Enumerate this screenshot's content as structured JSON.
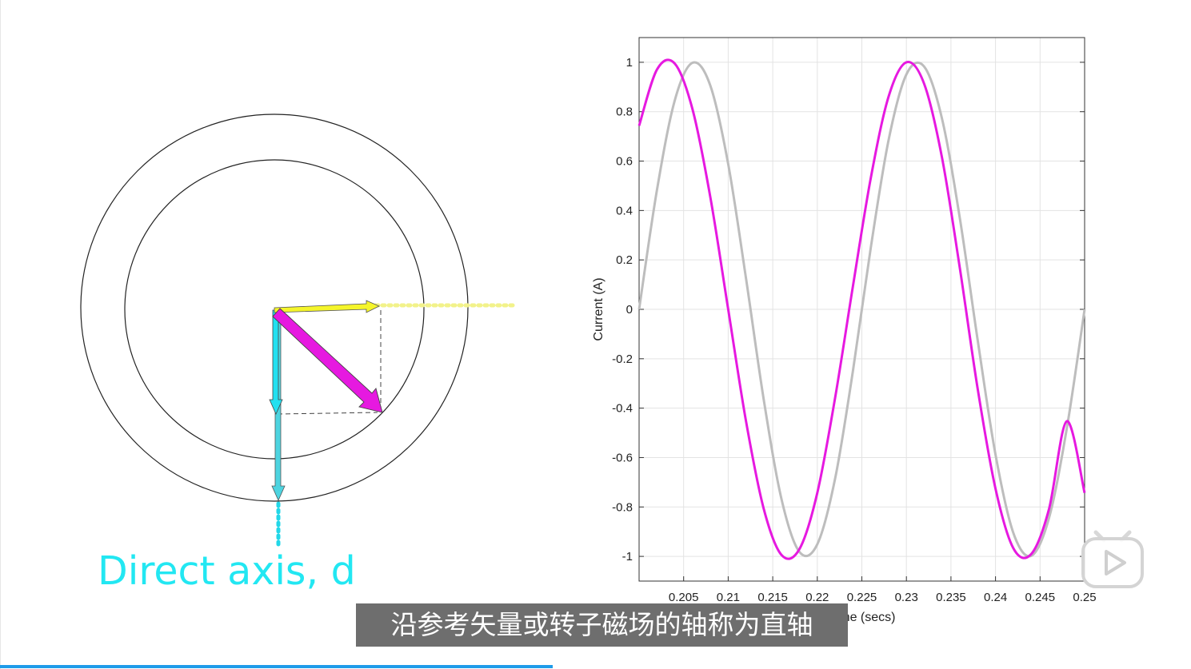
{
  "diagram": {
    "direct_axis_label": "Direct axis, d"
  },
  "chart_data": {
    "type": "line",
    "xlabel": "Time (secs)",
    "ylabel": "Current (A)",
    "xlim": [
      0.2,
      0.25
    ],
    "ylim": [
      -1.1,
      1.1
    ],
    "x_ticks": [
      "0.205",
      "0.21",
      "0.215",
      "0.22",
      "0.225",
      "0.23",
      "0.235",
      "0.24",
      "0.245",
      "0.25"
    ],
    "y_ticks": [
      "1",
      "0.8",
      "0.6",
      "0.4",
      "0.2",
      "0",
      "-0.2",
      "-0.4",
      "-0.6",
      "-0.8",
      "-1"
    ],
    "grid": true,
    "series": [
      {
        "color": "#bdbdbd",
        "x": [
          0.2,
          0.202,
          0.204,
          0.206,
          0.208,
          0.21,
          0.212,
          0.214,
          0.216,
          0.218,
          0.22,
          0.222,
          0.224,
          0.226,
          0.228,
          0.23,
          0.232,
          0.234,
          0.236,
          0.238,
          0.24,
          0.242,
          0.244,
          0.246,
          0.248,
          0.25
        ],
        "y": [
          0.0,
          0.482,
          0.845,
          0.998,
          0.905,
          0.588,
          0.125,
          -0.368,
          -0.771,
          -0.982,
          -0.951,
          -0.685,
          -0.249,
          0.249,
          0.685,
          0.951,
          0.982,
          0.771,
          0.368,
          -0.125,
          -0.588,
          -0.905,
          -0.998,
          -0.845,
          -0.482,
          0.0
        ]
      },
      {
        "color": "#e619e0",
        "x": [
          0.2,
          0.202,
          0.204,
          0.206,
          0.208,
          0.21,
          0.212,
          0.214,
          0.216,
          0.218,
          0.22,
          0.222,
          0.224,
          0.226,
          0.228,
          0.23,
          0.232,
          0.234,
          0.236,
          0.238,
          0.24,
          0.242,
          0.244,
          0.246,
          0.248,
          0.25
        ],
        "y": [
          0.743,
          0.97,
          0.995,
          0.809,
          0.453,
          0.0,
          -0.453,
          -0.809,
          -0.995,
          -0.97,
          -0.743,
          -0.358,
          0.094,
          0.531,
          0.861,
          1.0,
          0.912,
          0.613,
          0.166,
          -0.322,
          -0.726,
          -0.967,
          -0.991,
          -0.809,
          -0.453,
          -0.743
        ]
      }
    ]
  },
  "subtitle": {
    "text": "沿参考矢量或转子磁场的轴称为直轴"
  },
  "player": {
    "progress": 0.464,
    "play_icon": "play-icon",
    "accent_color": "#1e9be9"
  }
}
